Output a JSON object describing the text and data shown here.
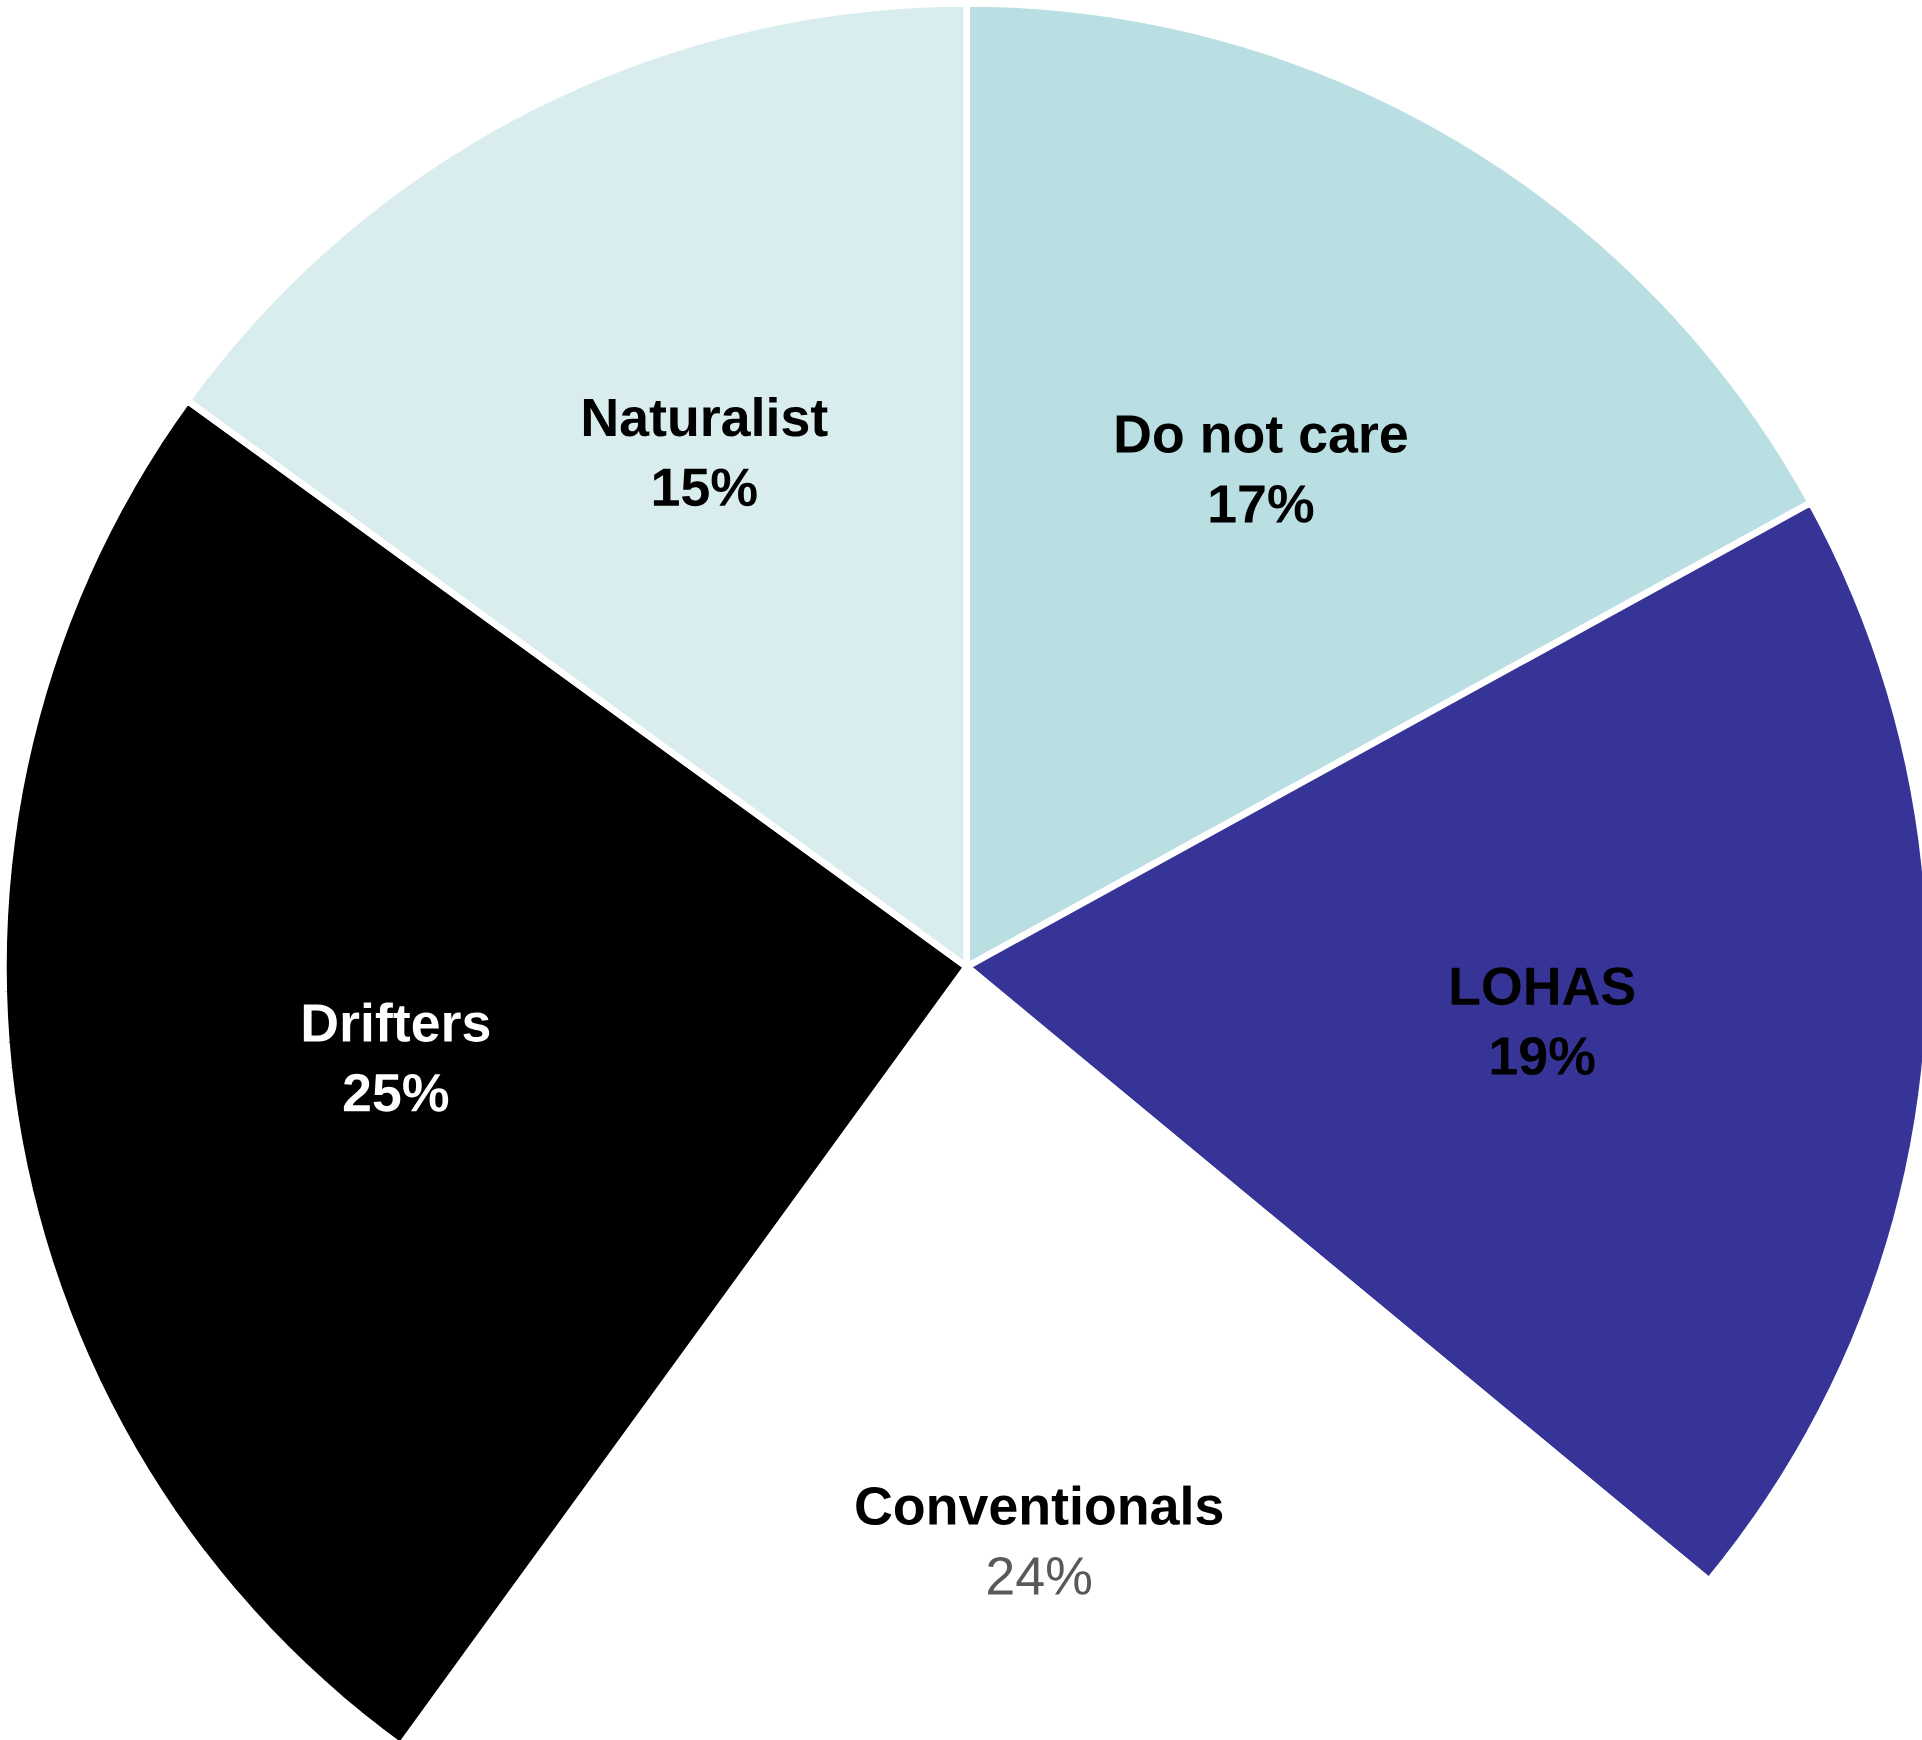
{
  "chart_data": {
    "type": "pie",
    "categories": [
      "Do not care",
      "LOHAS",
      "Conventionals",
      "Drifters",
      "Naturalist"
    ],
    "values": [
      17,
      19,
      24,
      25,
      15
    ],
    "value_labels": [
      "17%",
      "19%",
      "24%",
      "25%",
      "15%"
    ],
    "colors": [
      "#b9dfe2",
      "#373498",
      "#ffffff",
      "#000000",
      "#d9ecee"
    ]
  }
}
